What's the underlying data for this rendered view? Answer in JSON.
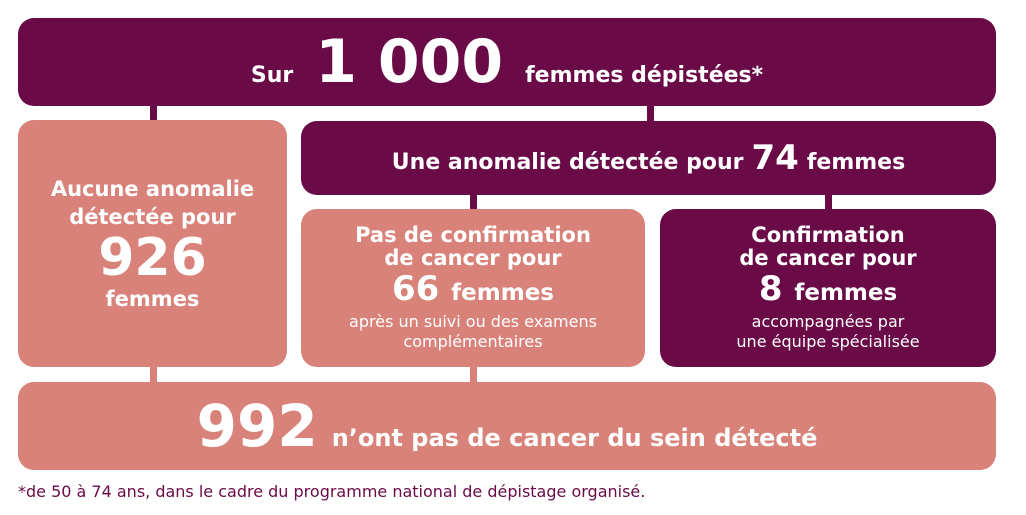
{
  "colors": {
    "purple": "#6a0a47",
    "salmon": "#d9827a"
  },
  "top": {
    "prefix": "Sur",
    "number": "1 000",
    "suffix": "femmes dépistées*"
  },
  "no_anomaly": {
    "line1": "Aucune anomalie",
    "line2": "détectée pour",
    "number": "926",
    "unit": "femmes"
  },
  "anomaly": {
    "prefix": "Une anomalie détectée pour",
    "number": "74",
    "suffix": "femmes"
  },
  "no_cancer": {
    "line1": "Pas de confirmation",
    "line2": "de cancer pour",
    "number": "66",
    "unit": "femmes",
    "note1": "après un suivi ou des examens",
    "note2": "complémentaires"
  },
  "cancer": {
    "line1": "Confirmation",
    "line2": "de cancer pour",
    "number": "8",
    "unit": "femmes",
    "note1": "accompagnées par",
    "note2": "une équipe spécialisée"
  },
  "bottom": {
    "number": "992",
    "text": "n’ont pas de cancer du sein détecté"
  },
  "footnote": "*de 50 à 74 ans, dans le cadre du programme national de dépistage organisé."
}
